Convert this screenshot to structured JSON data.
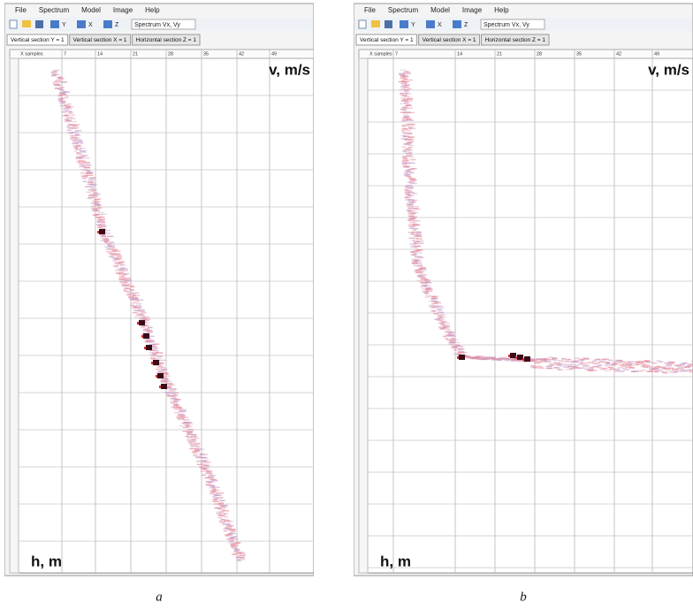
{
  "panels": [
    {
      "menu": [
        "File",
        "Spectrum",
        "Model",
        "Image",
        "Help"
      ],
      "toolbar": {
        "buttons": [
          "Y",
          "X",
          "Z"
        ],
        "dropdown": "Spectrum Vx, Vy"
      },
      "tabs": [
        "Vertical section Y = 1",
        "Vertical section X = 1",
        "Horizontal section Z = 1"
      ],
      "axis": {
        "label": "X samples",
        "ticks": [
          7,
          14,
          21,
          28,
          35,
          42,
          49
        ]
      },
      "velocity_label": "v, m/s",
      "depth_label": "h, m",
      "caption": "a"
    },
    {
      "menu": [
        "File",
        "Spectrum",
        "Model",
        "Image",
        "Help"
      ],
      "toolbar": {
        "buttons": [
          "Y",
          "X",
          "Z"
        ],
        "dropdown": "Spectrum Vx, Vy"
      },
      "tabs": [
        "Vertical section Y = 1",
        "Vertical section X = 1",
        "Horizontal section Z = 1"
      ],
      "axis": {
        "label": "X samples",
        "ticks": [
          7,
          14,
          21,
          28,
          35,
          42,
          49
        ]
      },
      "velocity_label": "v, m/s",
      "depth_label": "h, m",
      "caption": "b"
    }
  ]
}
